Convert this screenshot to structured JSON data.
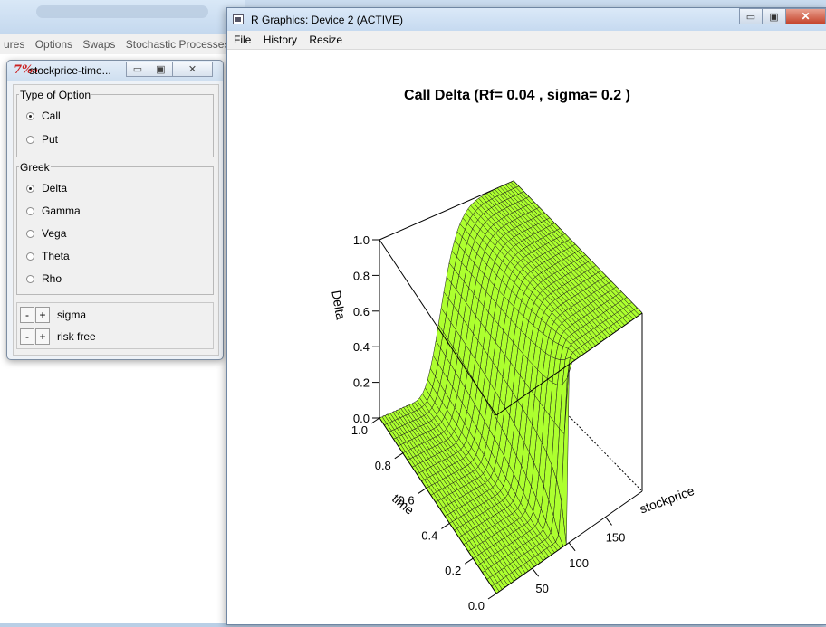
{
  "background_app": {
    "menu": [
      "ures",
      "Options",
      "Swaps",
      "Stochastic Processes"
    ]
  },
  "tk_window": {
    "title": "stockprice-time...",
    "option_group_label": "Type of Option",
    "options": [
      {
        "label": "Call",
        "selected": true
      },
      {
        "label": "Put",
        "selected": false
      }
    ],
    "greek_group_label": "Greek",
    "greeks": [
      {
        "label": "Delta",
        "selected": true
      },
      {
        "label": "Gamma",
        "selected": false
      },
      {
        "label": "Vega",
        "selected": false
      },
      {
        "label": "Theta",
        "selected": false
      },
      {
        "label": "Rho",
        "selected": false
      }
    ],
    "spinners": [
      {
        "minus": "-",
        "plus": "+",
        "label": "sigma"
      },
      {
        "minus": "-",
        "plus": "+",
        "label": "risk free"
      }
    ]
  },
  "r_window": {
    "title": "R Graphics: Device 2 (ACTIVE)",
    "menu": [
      "File",
      "History",
      "Resize"
    ]
  },
  "chart_data": {
    "type": "surface",
    "title": "Call Delta (Rf=  0.04 , sigma=  0.2 )",
    "xlabel": "stockprice",
    "ylabel": "time",
    "zlabel": "Delta",
    "x_ticks": [
      "50",
      "100",
      "150"
    ],
    "y_ticks": [
      "0.0",
      "0.2",
      "0.4",
      "0.6",
      "0.8",
      "1.0"
    ],
    "z_ticks": [
      "0.0",
      "0.2",
      "0.4",
      "0.6",
      "0.8",
      "1.0"
    ],
    "xlim": [
      1,
      200
    ],
    "ylim": [
      0,
      1
    ],
    "zlim": [
      0,
      1
    ],
    "strike": 100,
    "rf": 0.04,
    "sigma": 0.2,
    "surface_color": "#adff2f"
  }
}
